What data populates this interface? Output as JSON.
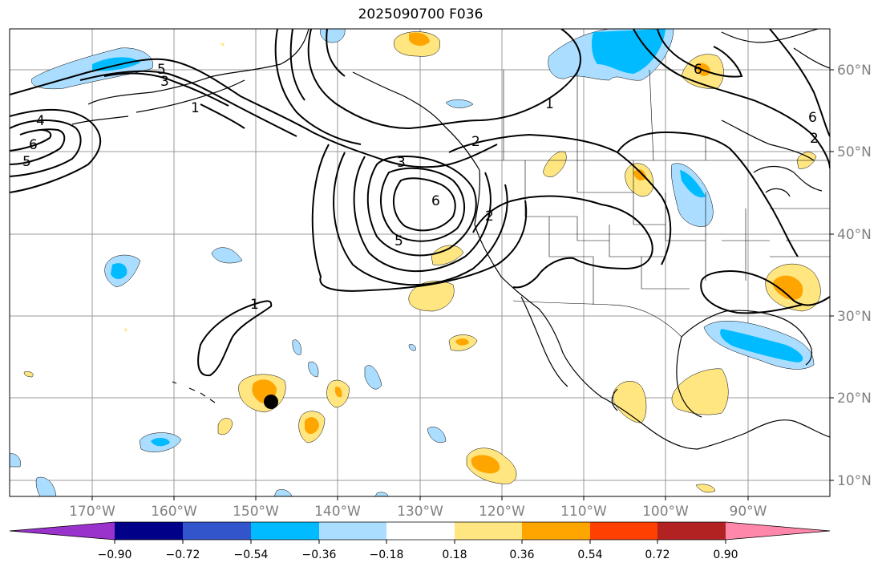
{
  "title": "2025090700 F036",
  "lat_labels": [
    "60°N",
    "50°N",
    "40°N",
    "30°N",
    "20°N",
    "10°N"
  ],
  "lon_labels": [
    "170°W",
    "160°W",
    "150°W",
    "140°W",
    "130°W",
    "120°W",
    "110°W",
    "100°W",
    "90°W"
  ],
  "colorbar": {
    "ticks": [
      "−0.90",
      "−0.72",
      "−0.54",
      "−0.36",
      "−0.18",
      "0.18",
      "0.36",
      "0.54",
      "0.72",
      "0.90"
    ],
    "colors": [
      "#9933cc",
      "#000088",
      "#3355cc",
      "#00bbff",
      "#aaddff",
      "#ffffff",
      "#ffe680",
      "#ffa500",
      "#ff4000",
      "#b22222",
      "#ff88aa"
    ]
  },
  "contour_labels": [
    "5",
    "3",
    "1",
    "4",
    "6",
    "5",
    "1",
    "6",
    "2",
    "3",
    "6",
    "5",
    "2",
    "1",
    "6",
    "2"
  ]
}
